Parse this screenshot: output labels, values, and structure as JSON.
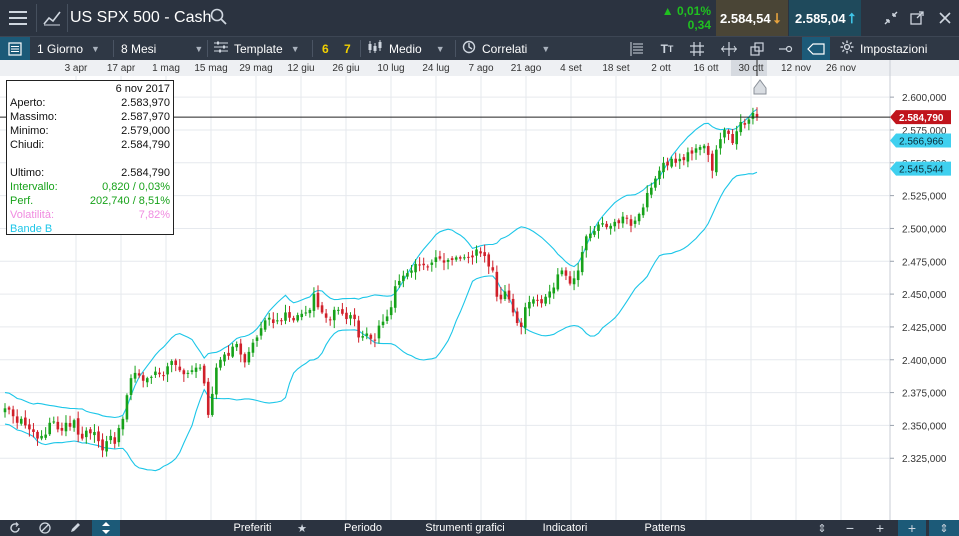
{
  "window": {
    "title": "US SPX 500 - Cash",
    "change_pct": "0,01%",
    "change_abs": "0,34",
    "bid": "2.584,54",
    "ask": "2.585,04",
    "colors": {
      "up": "#17a21a",
      "down": "#d0202a",
      "accent": "#1cc6e8",
      "bid_bg": "#4a4536",
      "ask_bg": "#1f4a5c"
    }
  },
  "toolbar": {
    "interval": "1 Giorno",
    "range": "8 Mesi",
    "template": "Template",
    "quick1": "6",
    "quick2": "7",
    "chart_style": "Medio",
    "related": "Correlati",
    "settings": "Impostazioni"
  },
  "chart_data": {
    "type": "candlestick",
    "x_tick_labels": [
      "3 apr",
      "17 apr",
      "1 mag",
      "15 mag",
      "29 mag",
      "12 giu",
      "26 giu",
      "10 lug",
      "24 lug",
      "7 ago",
      "21 ago",
      "4 set",
      "18 set",
      "2 ott",
      "16 ott",
      "30 ott",
      "12 nov",
      "26 nov"
    ],
    "y_tick_labels": [
      "2.600,000",
      "2.575,000",
      "2.550,000",
      "2.525,000",
      "2.500,000",
      "2.475,000",
      "2.450,000",
      "2.425,000",
      "2.400,000",
      "2.375,000",
      "2.350,000",
      "2.325,000"
    ],
    "y_ticks": [
      2600,
      2575,
      2550,
      2525,
      2500,
      2475,
      2450,
      2425,
      2400,
      2375,
      2350,
      2325
    ],
    "ylim": [
      2313,
      2610
    ],
    "grid": true,
    "indicators": [
      "Bande B"
    ],
    "price_labels": [
      {
        "text": "2.584,790",
        "value": 2584.79,
        "style": "last"
      },
      {
        "text": "2.566,966",
        "value": 2566.966,
        "style": "band-upper"
      },
      {
        "text": "2.545,544",
        "value": 2545.544,
        "style": "band-lower"
      }
    ],
    "closes": [
      2363,
      2362,
      2357,
      2352,
      2355,
      2350,
      2347,
      2345,
      2340,
      2342,
      2343,
      2352,
      2353,
      2347,
      2346,
      2352,
      2349,
      2354,
      2343,
      2340,
      2346,
      2344,
      2345,
      2338,
      2331,
      2338,
      2342,
      2336,
      2348,
      2355,
      2373,
      2386,
      2390,
      2388,
      2384,
      2386,
      2387,
      2391,
      2389,
      2388,
      2395,
      2399,
      2396,
      2392,
      2389,
      2390,
      2392,
      2394,
      2394,
      2382,
      2358,
      2374,
      2394,
      2400,
      2404,
      2403,
      2410,
      2412,
      2404,
      2398,
      2406,
      2413,
      2417,
      2424,
      2430,
      2432,
      2428,
      2430,
      2430,
      2436,
      2432,
      2430,
      2434,
      2435,
      2436,
      2438,
      2450,
      2440,
      2436,
      2432,
      2430,
      2438,
      2438,
      2435,
      2431,
      2434,
      2431,
      2417,
      2418,
      2420,
      2416,
      2415,
      2426,
      2429,
      2433,
      2440,
      2456,
      2460,
      2464,
      2466,
      2468,
      2473,
      2472,
      2472,
      2471,
      2474,
      2478,
      2477,
      2474,
      2476,
      2476,
      2478,
      2477,
      2478,
      2478,
      2478,
      2484,
      2481,
      2479,
      2471,
      2468,
      2448,
      2446,
      2452,
      2446,
      2436,
      2428,
      2425,
      2440,
      2444,
      2446,
      2445,
      2443,
      2448,
      2452,
      2455,
      2465,
      2468,
      2464,
      2458,
      2462,
      2468,
      2482,
      2494,
      2496,
      2498,
      2503,
      2504,
      2501,
      2502,
      2505,
      2504,
      2509,
      2508,
      2502,
      2506,
      2511,
      2516,
      2527,
      2531,
      2538,
      2544,
      2550,
      2548,
      2553,
      2550,
      2553,
      2552,
      2558,
      2557,
      2561,
      2562,
      2563,
      2556,
      2544,
      2560,
      2568,
      2575,
      2572,
      2565,
      2574,
      2581,
      2579,
      2583,
      2588,
      2585
    ]
  },
  "infobox": {
    "date": "6 nov 2017",
    "open_label": "Aperto:",
    "open": "2.583,970",
    "high_label": "Massimo:",
    "high": "2.587,970",
    "low_label": "Minimo:",
    "low": "2.579,000",
    "close_label": "Chiudi:",
    "close": "2.584,790",
    "last_label": "Ultimo:",
    "last": "2.584,790",
    "range_label": "Intervallo:",
    "range": "0,820 / 0,03%",
    "perf_label": "Perf.",
    "perf": "202,740 / 8,51%",
    "vol_label": "Volatilità:",
    "vol": "7,82%",
    "bb_label": "Bande B"
  },
  "bottom": {
    "favorites": "Preferiti",
    "period": "Periodo",
    "tools": "Strumenti grafici",
    "indicators": "Indicatori",
    "patterns": "Patterns"
  }
}
